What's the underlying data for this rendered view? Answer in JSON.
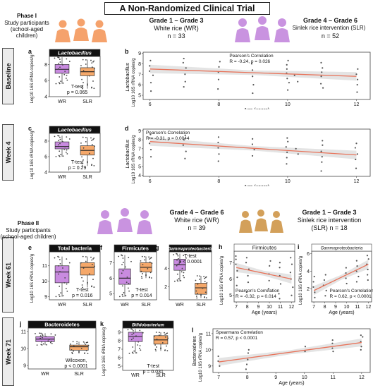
{
  "figure_title": "A Non-Randomized Clinical Trial",
  "phase1": {
    "heading": "Phase I",
    "subtitle_1": "Study participants",
    "subtitle_2": "(school-aged children)",
    "wr_group": {
      "grade": "Grade 1 – Grade 3",
      "diet": "White rice (WR)",
      "n": "n = 33"
    },
    "slr_group": {
      "grade": "Grade 4 – Grade 6",
      "diet": "Sinlek rice intervention (SLR)",
      "n": "n = 52"
    }
  },
  "phase2": {
    "heading": "Phase II",
    "subtitle_1": "Study participants",
    "subtitle_2": "(school-aged children)",
    "wr_group": {
      "grade": "Grade 4 – Grade 6",
      "diet": "White rice (WR)",
      "n": "n = 39"
    },
    "slr_group": {
      "grade": "Grade 1 – Grade 3",
      "diet": "Sinlek rice intervention",
      "diet2": "(SLR) n = 18"
    }
  },
  "colors": {
    "wr": "#c98be0",
    "slr": "#f5a86a",
    "orange_people": "#f5a26c",
    "purple_people": "#c993e0",
    "tan_people": "#d3a05a",
    "fit_line": "#e8735a",
    "band": "#d9d9d9"
  },
  "rows": {
    "baseline": "Baseline",
    "week4": "Week 4",
    "week61": "Week 61",
    "week71": "Week 71"
  },
  "panels": {
    "a": {
      "letter": "a",
      "strip": "Lactobacillus",
      "ylabel": "Log10 16S rRNA copies/g",
      "yticks": [
        "4",
        "6",
        "8"
      ],
      "xcats": [
        "WR",
        "SLR"
      ],
      "stat1": "T-test",
      "stat2": "p = 0.065"
    },
    "b": {
      "letter": "b",
      "ylabel_1": "Lactobacillus",
      "ylabel_2": "Log10 16S rRNA copies/g",
      "xlabel": "Age (years)",
      "xticks": [
        "6",
        "8",
        "10",
        "12"
      ],
      "yticks": [
        "5",
        "6",
        "7",
        "8",
        "9"
      ],
      "stat1": "Pearson's Correlation",
      "stat2": "R = -0.24, p = 0.026"
    },
    "c": {
      "letter": "c",
      "strip": "Lactobacillus",
      "ylabel": "Log10 16S rRNA copies/g",
      "yticks": [
        "4",
        "6",
        "8"
      ],
      "xcats": [
        "WR",
        "SLR"
      ],
      "stat1": "T-test",
      "stat2": "p = 0.29"
    },
    "d": {
      "letter": "d",
      "ylabel_1": "Lactobacillus",
      "ylabel_2": "Log10 16S rRNA copies/g",
      "xlabel": "Age (years)",
      "xticks": [
        "6",
        "8",
        "10",
        "12"
      ],
      "yticks": [
        "4",
        "5",
        "6",
        "7",
        "8",
        "9"
      ],
      "stat1": "Pearson's Correlation",
      "stat2": "R = -0.31, p = 0.0044"
    },
    "e": {
      "letter": "e",
      "strip": "Total bacteria",
      "ylabel": "Log10 16S rRNA copies/g",
      "yticks": [
        "9",
        "10",
        "11"
      ],
      "xcats": [
        "WR",
        "SLR"
      ],
      "stat1": "T-test",
      "stat2": "p = 0.016"
    },
    "f": {
      "letter": "f",
      "strip": "Firmicutes",
      "ylabel": "",
      "yticks": [
        "5",
        "6",
        "7"
      ],
      "xcats": [
        "WR",
        "SLR"
      ],
      "stat1": "T-test",
      "stat2": "p = 0.014"
    },
    "g": {
      "letter": "g",
      "strip": "Gammaproteobacteria",
      "ylabel": "",
      "yticks": [
        "2",
        "4"
      ],
      "xcats": [
        "WR",
        "SLR"
      ],
      "stat1": "T-test",
      "stat2": "p < 0.0001"
    },
    "h": {
      "letter": "h",
      "strip": "Firmicutes",
      "ylabel": "Log10 16S rRNA copies/g",
      "xlabel": "Age (years)",
      "xticks": [
        "7",
        "8",
        "9",
        "10",
        "11",
        "12"
      ],
      "yticks": [
        "5",
        "6",
        "7"
      ],
      "stat1": "Pearson's Correlation",
      "stat2": "R = -0.32, p = 0.014"
    },
    "i": {
      "letter": "i",
      "strip": "Gammaproteobacteria",
      "ylabel": "Log10 16S rRNA copies/g",
      "xlabel": "Age (years)",
      "xticks": [
        "7",
        "8",
        "9",
        "10",
        "11",
        "12"
      ],
      "yticks": [
        "2",
        "4",
        "6"
      ],
      "stat1": "Pearson's Correlation",
      "stat2": "R = 0.62, p < 0.0001"
    },
    "j": {
      "letter": "j",
      "strip": "Bacteroidetes",
      "ylabel": "",
      "yticks": [
        "9",
        "10",
        "11"
      ],
      "xcats": [
        "WR",
        "SLR"
      ],
      "stat1": "Wilcoxon,",
      "stat2": "p < 0.0001"
    },
    "k": {
      "letter": "k",
      "strip": "Bifidobacterium",
      "ylabel": "Log10 16S rRNA copies/g",
      "yticks": [
        "5",
        "6",
        "7",
        "8",
        "9"
      ],
      "xcats": [
        "WR",
        "SLR"
      ],
      "stat1": "T-test",
      "stat2": "p = 0.031"
    },
    "l": {
      "letter": "l",
      "ylabel_1": "Bacteroidetes",
      "ylabel_2": "Log10 16S rRNA copies/g",
      "xlabel": "Age (years)",
      "xticks": [
        "7",
        "8",
        "9",
        "10",
        "11",
        "12"
      ],
      "yticks": [
        "9",
        "10",
        "11"
      ],
      "stat1": "Spearmans Correlation",
      "stat2": "R = 0.57, p < 0.0001"
    }
  },
  "chart_data": [
    {
      "panel": "a",
      "type": "box",
      "categories": [
        "WR",
        "SLR"
      ],
      "ylim": [
        4,
        9
      ],
      "boxes": [
        {
          "q1": 6.9,
          "median": 7.4,
          "q3": 8.0,
          "min": 5.6,
          "max": 8.9
        },
        {
          "q1": 6.6,
          "median": 7.1,
          "q3": 7.6,
          "min": 5.0,
          "max": 8.6
        }
      ]
    },
    {
      "panel": "b",
      "type": "scatter",
      "xlim": [
        5.8,
        12.4
      ],
      "ylim": [
        4.6,
        9.1
      ],
      "fit": [
        [
          6,
          7.5
        ],
        [
          12,
          6.8
        ]
      ],
      "points": [
        [
          6,
          7.8
        ],
        [
          6,
          7.3
        ],
        [
          6,
          6.2
        ],
        [
          6,
          5.4
        ],
        [
          6,
          8.3
        ],
        [
          6.1,
          6.9
        ],
        [
          7,
          8.1
        ],
        [
          7,
          7.6
        ],
        [
          7,
          7.0
        ],
        [
          7,
          6.3
        ],
        [
          7,
          5.8
        ],
        [
          7,
          8.5
        ],
        [
          8,
          7.7
        ],
        [
          8,
          7.2
        ],
        [
          8,
          6.5
        ],
        [
          8,
          5.6
        ],
        [
          8,
          8.2
        ],
        [
          9,
          7.4
        ],
        [
          9,
          6.8
        ],
        [
          9,
          6.0
        ],
        [
          9,
          8.0
        ],
        [
          9,
          5.2
        ],
        [
          10,
          7.9
        ],
        [
          10,
          7.1
        ],
        [
          10,
          6.6
        ],
        [
          10,
          6.2
        ],
        [
          10,
          5.5
        ],
        [
          10,
          8.3
        ],
        [
          10,
          7.5
        ],
        [
          10.2,
          6.9
        ],
        [
          10.3,
          6.3
        ],
        [
          11,
          7.6
        ],
        [
          11,
          6.8
        ],
        [
          11,
          6.1
        ],
        [
          11,
          5.7
        ],
        [
          11,
          8.1
        ],
        [
          11,
          7.2
        ],
        [
          12,
          7.0
        ],
        [
          12,
          6.5
        ],
        [
          12,
          6.0
        ],
        [
          12,
          5.3
        ],
        [
          12,
          7.5
        ]
      ]
    },
    {
      "panel": "c",
      "type": "box",
      "categories": [
        "WR",
        "SLR"
      ],
      "ylim": [
        4,
        9
      ],
      "boxes": [
        {
          "q1": 7.0,
          "median": 7.3,
          "q3": 7.9,
          "min": 6.0,
          "max": 8.7
        },
        {
          "q1": 6.2,
          "median": 6.8,
          "q3": 7.4,
          "min": 4.8,
          "max": 8.5
        }
      ]
    },
    {
      "panel": "d",
      "type": "scatter",
      "xlim": [
        5.8,
        12.4
      ],
      "ylim": [
        3.9,
        9.2
      ],
      "fit": [
        [
          6,
          7.8
        ],
        [
          12,
          6.3
        ]
      ],
      "points": [
        [
          6,
          8.2
        ],
        [
          6,
          7.6
        ],
        [
          6,
          6.9
        ],
        [
          6,
          6.1
        ],
        [
          6,
          8.6
        ],
        [
          7,
          8.0
        ],
        [
          7,
          7.4
        ],
        [
          7,
          6.7
        ],
        [
          7,
          5.9
        ],
        [
          7,
          8.5
        ],
        [
          8,
          7.7
        ],
        [
          8,
          7.1
        ],
        [
          8,
          6.4
        ],
        [
          8,
          5.6
        ],
        [
          8,
          8.3
        ],
        [
          9,
          7.5
        ],
        [
          9,
          6.9
        ],
        [
          9,
          6.2
        ],
        [
          9,
          8.1
        ],
        [
          10,
          7.8
        ],
        [
          10,
          7.2
        ],
        [
          10,
          6.6
        ],
        [
          10,
          6.0
        ],
        [
          10,
          5.3
        ],
        [
          10,
          8.2
        ],
        [
          10.2,
          7.0
        ],
        [
          10.3,
          6.4
        ],
        [
          11,
          7.4
        ],
        [
          11,
          6.7
        ],
        [
          11,
          6.1
        ],
        [
          11,
          5.5
        ],
        [
          11,
          7.9
        ],
        [
          11,
          4.5
        ],
        [
          12,
          7.1
        ],
        [
          12,
          6.4
        ],
        [
          12,
          5.8
        ],
        [
          12,
          4.8
        ],
        [
          12,
          7.6
        ]
      ]
    },
    {
      "panel": "e",
      "type": "box",
      "categories": [
        "WR",
        "SLR"
      ],
      "ylim": [
        8.8,
        11.9
      ],
      "boxes": [
        {
          "q1": 9.9,
          "median": 10.6,
          "q3": 11.0,
          "min": 9.0,
          "max": 11.6
        },
        {
          "q1": 10.4,
          "median": 10.9,
          "q3": 11.2,
          "min": 9.6,
          "max": 11.6
        }
      ]
    },
    {
      "panel": "f",
      "type": "box",
      "categories": [
        "WR",
        "SLR"
      ],
      "ylim": [
        4.6,
        7.7
      ],
      "boxes": [
        {
          "q1": 5.6,
          "median": 6.0,
          "q3": 6.6,
          "min": 4.8,
          "max": 7.5
        },
        {
          "q1": 6.4,
          "median": 6.7,
          "q3": 7.0,
          "min": 6.0,
          "max": 7.4
        }
      ]
    },
    {
      "panel": "g",
      "type": "box",
      "categories": [
        "WR",
        "SLR"
      ],
      "ylim": [
        0.6,
        5.8
      ],
      "boxes": [
        {
          "q1": 3.8,
          "median": 4.4,
          "q3": 5.0,
          "min": 2.6,
          "max": 5.6
        },
        {
          "q1": 1.2,
          "median": 1.9,
          "q3": 2.4,
          "min": 0.8,
          "max": 3.2
        }
      ]
    },
    {
      "panel": "h",
      "type": "scatter",
      "xlim": [
        6.8,
        12.3
      ],
      "ylim": [
        4.6,
        7.7
      ],
      "fit": [
        [
          7,
          6.7
        ],
        [
          12,
          6.0
        ]
      ],
      "points": [
        [
          7,
          7.2
        ],
        [
          7,
          6.9
        ],
        [
          7,
          6.5
        ],
        [
          7,
          6.1
        ],
        [
          7,
          5.6
        ],
        [
          7,
          7.4
        ],
        [
          8,
          7.0
        ],
        [
          8,
          6.6
        ],
        [
          8,
          6.2
        ],
        [
          8,
          5.8
        ],
        [
          8,
          5.2
        ],
        [
          8,
          7.3
        ],
        [
          10,
          6.8
        ],
        [
          10,
          6.3
        ],
        [
          10,
          5.9
        ],
        [
          10,
          5.4
        ],
        [
          10,
          7.1
        ],
        [
          11,
          6.7
        ],
        [
          11,
          6.2
        ],
        [
          11,
          5.7
        ],
        [
          11,
          5.1
        ],
        [
          11,
          7.0
        ],
        [
          11,
          4.8
        ],
        [
          12,
          6.4
        ],
        [
          12,
          6.0
        ],
        [
          12,
          5.5
        ],
        [
          12,
          5.0
        ],
        [
          12,
          6.9
        ],
        [
          12,
          7.3
        ]
      ]
    },
    {
      "panel": "i",
      "type": "scatter",
      "xlim": [
        6.8,
        12.3
      ],
      "ylim": [
        0.5,
        6.3
      ],
      "fit": [
        [
          7,
          1.8
        ],
        [
          12,
          4.8
        ]
      ],
      "points": [
        [
          7,
          2.8
        ],
        [
          7,
          2.2
        ],
        [
          7,
          1.6
        ],
        [
          7,
          1.0
        ],
        [
          7,
          3.4
        ],
        [
          8,
          3.0
        ],
        [
          8,
          2.4
        ],
        [
          8,
          1.8
        ],
        [
          8,
          1.2
        ],
        [
          8,
          3.6
        ],
        [
          10,
          3.8
        ],
        [
          10,
          3.2
        ],
        [
          10,
          2.6
        ],
        [
          10,
          4.4
        ],
        [
          11,
          4.6
        ],
        [
          11,
          4.0
        ],
        [
          11,
          3.4
        ],
        [
          11,
          5.2
        ],
        [
          11,
          2.8
        ],
        [
          12,
          5.4
        ],
        [
          12,
          4.8
        ],
        [
          12,
          4.2
        ],
        [
          12,
          3.6
        ],
        [
          12,
          5.8
        ],
        [
          12,
          3.0
        ]
      ]
    },
    {
      "panel": "j",
      "type": "box",
      "categories": [
        "WR",
        "SLR"
      ],
      "ylim": [
        8.8,
        11.2
      ],
      "boxes": [
        {
          "q1": 10.4,
          "median": 10.55,
          "q3": 10.7,
          "min": 10.2,
          "max": 10.9
        },
        {
          "q1": 9.9,
          "median": 10.1,
          "q3": 10.2,
          "min": 9.7,
          "max": 10.4
        }
      ]
    },
    {
      "panel": "k",
      "type": "box",
      "categories": [
        "WR",
        "SLR"
      ],
      "ylim": [
        4.5,
        9.5
      ],
      "boxes": [
        {
          "q1": 7.9,
          "median": 8.5,
          "q3": 9.0,
          "min": 6.5,
          "max": 9.4
        },
        {
          "q1": 7.6,
          "median": 8.1,
          "q3": 8.6,
          "min": 6.8,
          "max": 9.0
        }
      ]
    },
    {
      "panel": "l",
      "type": "scatter",
      "xlim": [
        6.8,
        12.3
      ],
      "ylim": [
        8.6,
        11.3
      ],
      "fit": [
        [
          7,
          9.25
        ],
        [
          12,
          10.45
        ]
      ],
      "points": [
        [
          7,
          9.6
        ],
        [
          7,
          9.3
        ],
        [
          7,
          9.0
        ],
        [
          8,
          9.8
        ],
        [
          8,
          9.4
        ],
        [
          8,
          9.1
        ],
        [
          8,
          8.8
        ],
        [
          8,
          10.0
        ],
        [
          10,
          9.9
        ],
        [
          10,
          10.2
        ],
        [
          11,
          10.1
        ],
        [
          11,
          10.4
        ],
        [
          11,
          9.9
        ],
        [
          11,
          10.6
        ],
        [
          12,
          10.2
        ],
        [
          12,
          10.5
        ],
        [
          12,
          10.8
        ],
        [
          12,
          10.0
        ],
        [
          12,
          10.9
        ]
      ]
    }
  ]
}
